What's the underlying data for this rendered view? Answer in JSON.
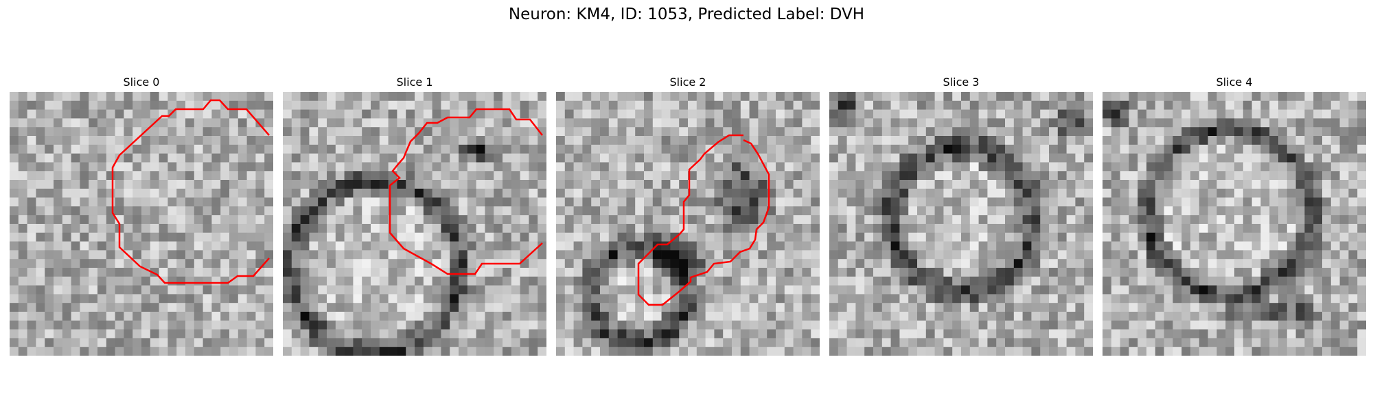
{
  "figure": {
    "title": "Neuron: KM4, ID: 1053, Predicted Label: DVH",
    "panels": [
      {
        "label": "Slice 0"
      },
      {
        "label": "Slice 1"
      },
      {
        "label": "Slice 2"
      },
      {
        "label": "Slice 3"
      },
      {
        "label": "Slice 4"
      }
    ]
  },
  "colors": {
    "contour": "#ff0000"
  }
}
